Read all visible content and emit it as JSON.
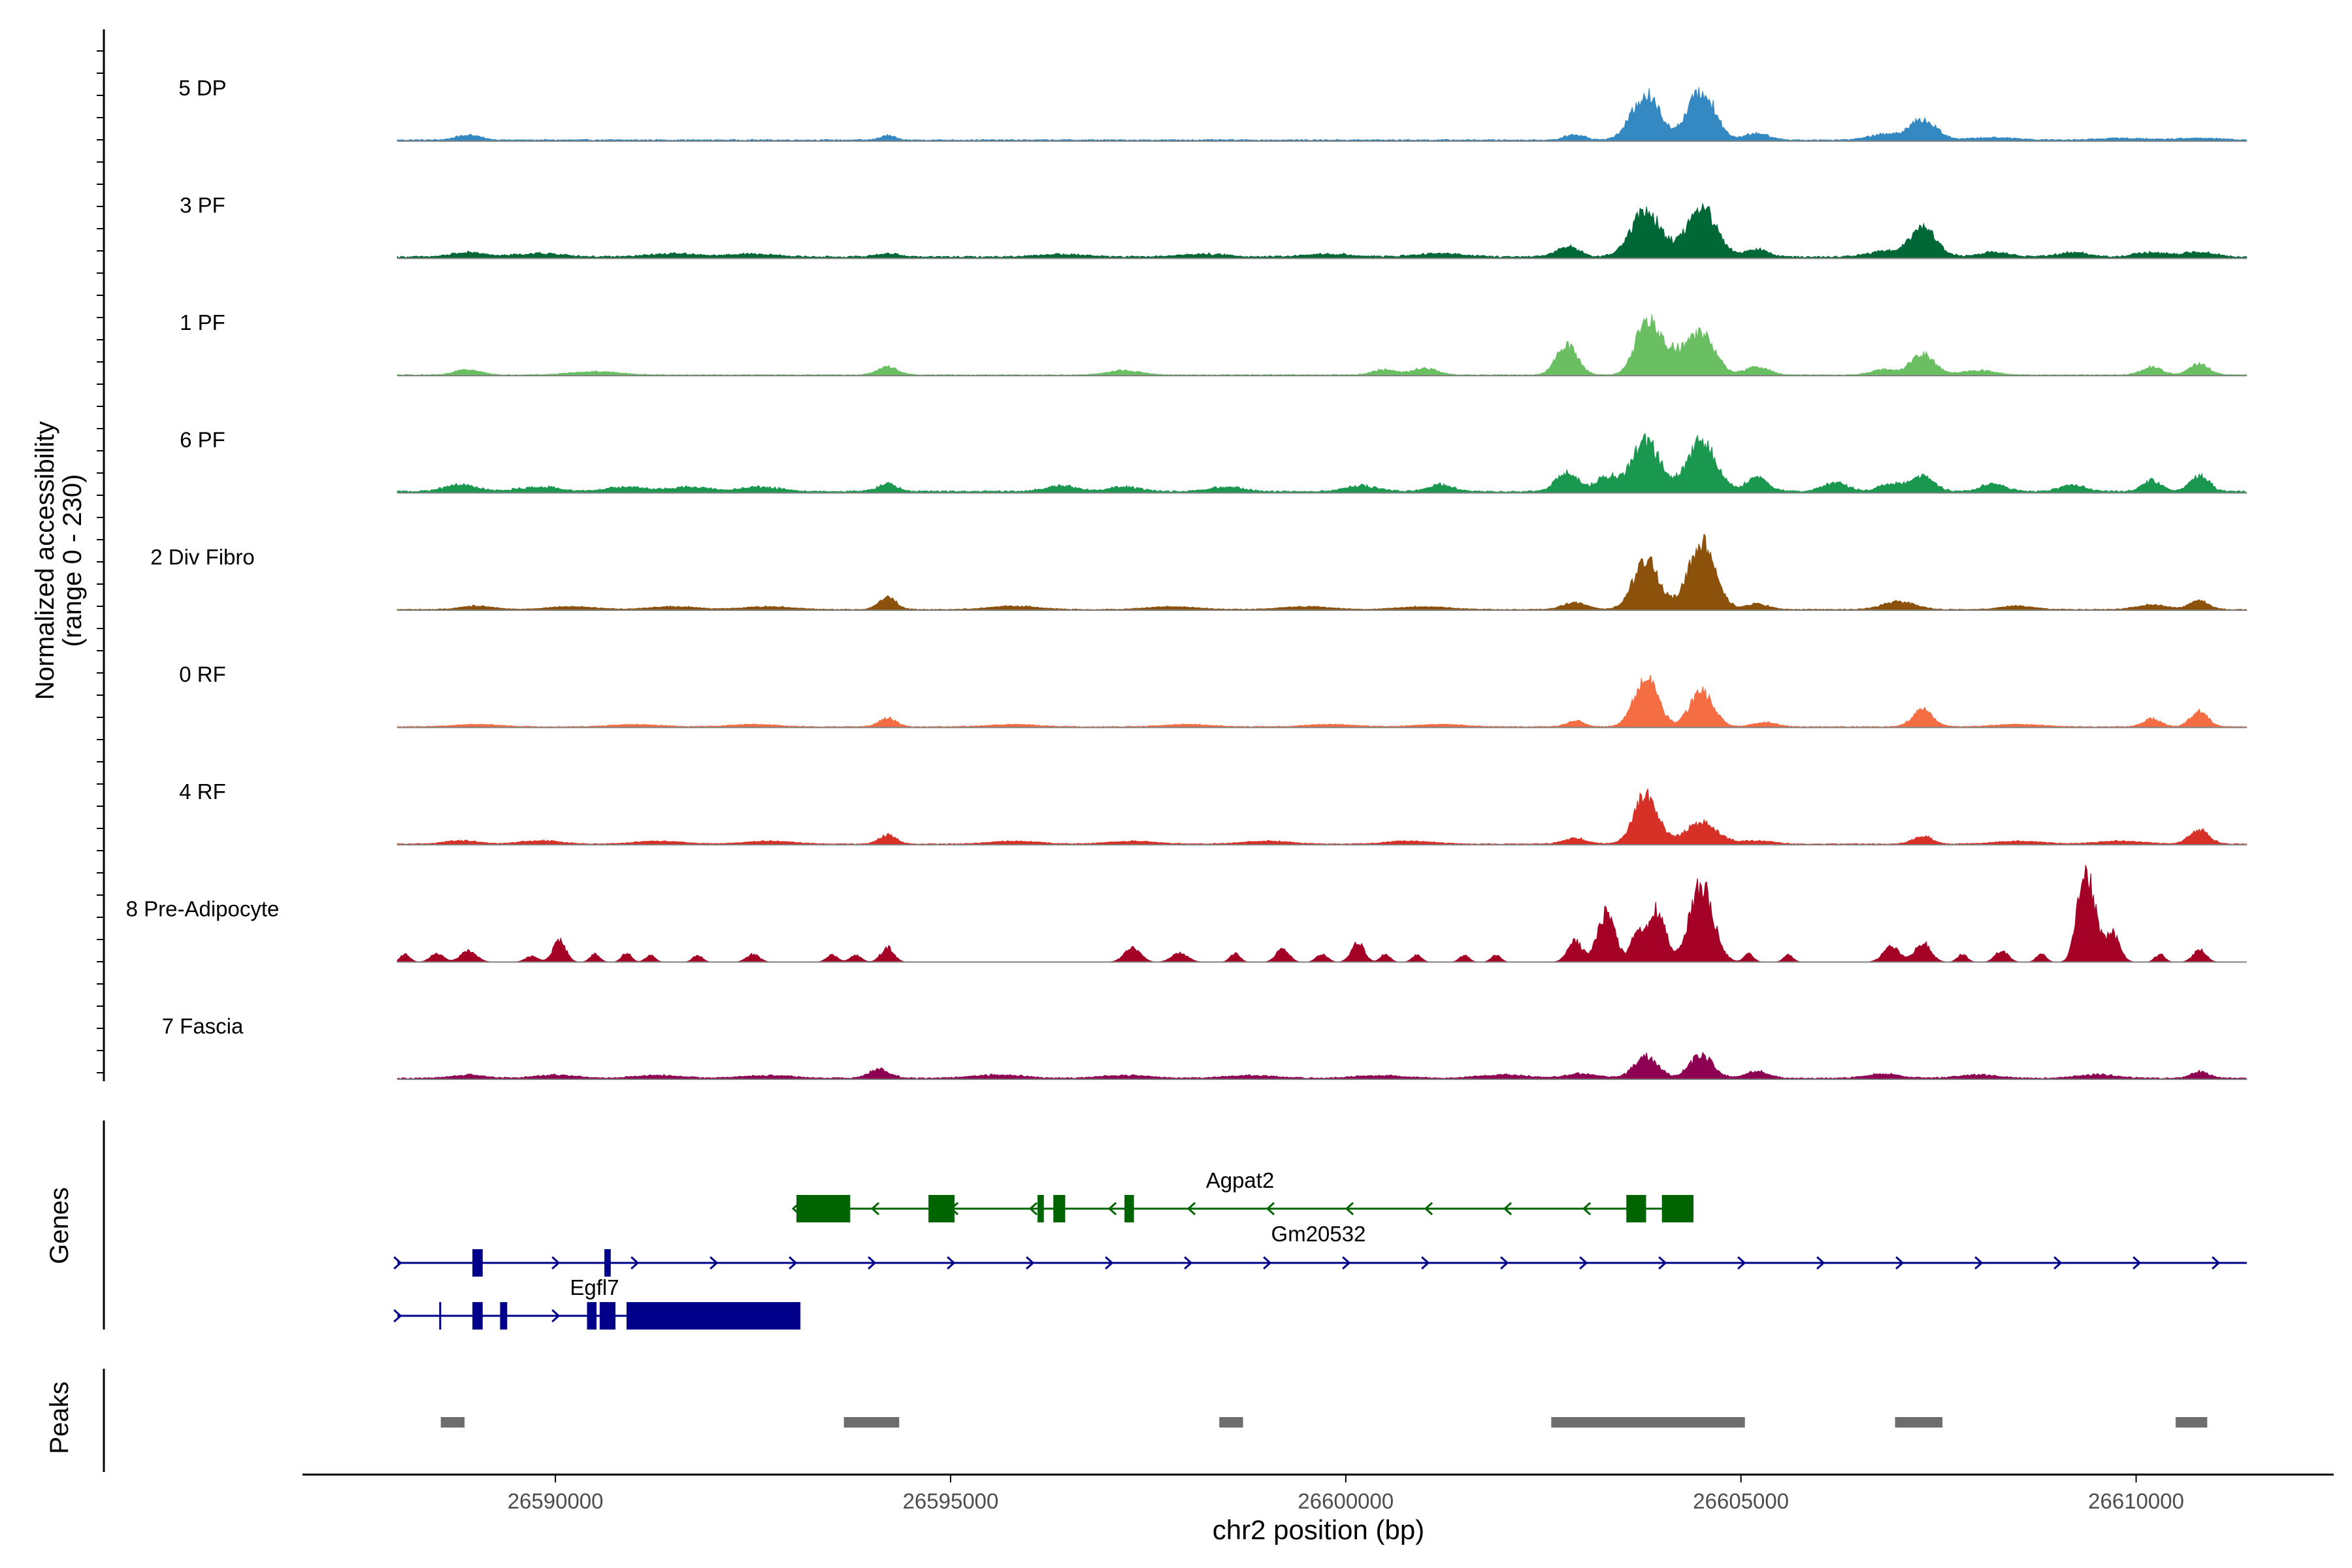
{
  "chart_data": {
    "type": "area",
    "y_axis": {
      "label": "Normalized accessibility",
      "range_label": "(range 0 - 230)",
      "ylim": [
        0,
        230
      ]
    },
    "x_axis": {
      "label": "chr2 position (bp)",
      "xlim": [
        26586800,
        26612500
      ],
      "ticks": [
        26590000,
        26595000,
        26600000,
        26605000,
        26610000
      ],
      "tick_labels": [
        "26590000",
        "26595000",
        "26600000",
        "26605000",
        "26610000"
      ]
    },
    "track_start": 26588000,
    "track_end": 26611400,
    "tracks": [
      {
        "label": "5 DP",
        "color": "#3589C2",
        "baseline": 3,
        "peaks": [
          [
            26588900,
            9,
            150
          ],
          [
            26594200,
            8,
            90
          ],
          [
            26602900,
            10,
            120
          ],
          [
            26603800,
            80,
            180
          ],
          [
            26604500,
            88,
            170
          ],
          [
            26605200,
            12,
            150
          ],
          [
            26606800,
            10,
            200
          ],
          [
            26607300,
            36,
            170
          ],
          [
            26608200,
            4,
            300
          ],
          [
            26609800,
            3,
            300
          ],
          [
            26610800,
            3,
            300
          ]
        ]
      },
      {
        "label": "3 PF",
        "color": "#006837",
        "baseline": 4,
        "peaks": [
          [
            26588900,
            8,
            200
          ],
          [
            26589800,
            6,
            300
          ],
          [
            26591500,
            6,
            300
          ],
          [
            26592500,
            5,
            300
          ],
          [
            26594200,
            6,
            150
          ],
          [
            26596400,
            5,
            300
          ],
          [
            26598200,
            5,
            300
          ],
          [
            26599800,
            5,
            300
          ],
          [
            26601200,
            6,
            300
          ],
          [
            26602800,
            20,
            140
          ],
          [
            26603800,
            80,
            190
          ],
          [
            26604500,
            88,
            190
          ],
          [
            26605200,
            14,
            140
          ],
          [
            26606800,
            10,
            200
          ],
          [
            26607300,
            52,
            170
          ],
          [
            26608200,
            8,
            200
          ],
          [
            26609200,
            8,
            200
          ],
          [
            26610200,
            8,
            200
          ],
          [
            26610800,
            8,
            200
          ]
        ]
      },
      {
        "label": "1 PF",
        "color": "#6ABF63",
        "baseline": 2,
        "peaks": [
          [
            26588900,
            10,
            150
          ],
          [
            26590500,
            6,
            300
          ],
          [
            26594200,
            14,
            130
          ],
          [
            26597200,
            8,
            200
          ],
          [
            26600500,
            10,
            150
          ],
          [
            26601000,
            12,
            150
          ],
          [
            26602800,
            55,
            130
          ],
          [
            26603800,
            90,
            140
          ],
          [
            26604100,
            40,
            150
          ],
          [
            26604500,
            72,
            170
          ],
          [
            26605200,
            14,
            150
          ],
          [
            26606800,
            10,
            150
          ],
          [
            26607300,
            38,
            150
          ],
          [
            26608000,
            8,
            200
          ],
          [
            26610200,
            14,
            130
          ],
          [
            26610800,
            20,
            120
          ]
        ]
      },
      {
        "label": "6 PF",
        "color": "#1A9850",
        "baseline": 4,
        "peaks": [
          [
            26588800,
            12,
            200
          ],
          [
            26589800,
            8,
            250
          ],
          [
            26590900,
            8,
            250
          ],
          [
            26591700,
            8,
            250
          ],
          [
            26592600,
            8,
            250
          ],
          [
            26594200,
            14,
            120
          ],
          [
            26596400,
            10,
            200
          ],
          [
            26597200,
            8,
            200
          ],
          [
            26598500,
            8,
            200
          ],
          [
            26600200,
            10,
            200
          ],
          [
            26601200,
            12,
            150
          ],
          [
            26602800,
            34,
            140
          ],
          [
            26603300,
            26,
            130
          ],
          [
            26603800,
            88,
            180
          ],
          [
            26604500,
            90,
            180
          ],
          [
            26605200,
            24,
            140
          ],
          [
            26606200,
            16,
            150
          ],
          [
            26606900,
            14,
            150
          ],
          [
            26607300,
            26,
            150
          ],
          [
            26608200,
            14,
            150
          ],
          [
            26609200,
            12,
            150
          ],
          [
            26610200,
            20,
            120
          ],
          [
            26610800,
            28,
            120
          ]
        ]
      },
      {
        "label": "2 Div Fibro",
        "color": "#8C510A",
        "baseline": 2,
        "peaks": [
          [
            26589000,
            6,
            200
          ],
          [
            26590200,
            5,
            300
          ],
          [
            26591500,
            5,
            300
          ],
          [
            26592700,
            5,
            300
          ],
          [
            26594200,
            22,
            110
          ],
          [
            26595800,
            6,
            300
          ],
          [
            26597800,
            5,
            300
          ],
          [
            26599500,
            5,
            300
          ],
          [
            26601000,
            5,
            300
          ],
          [
            26602900,
            12,
            150
          ],
          [
            26603800,
            88,
            160
          ],
          [
            26604500,
            120,
            170
          ],
          [
            26605200,
            10,
            150
          ],
          [
            26607000,
            14,
            200
          ],
          [
            26608500,
            6,
            200
          ],
          [
            26610200,
            8,
            200
          ],
          [
            26610800,
            16,
            120
          ]
        ]
      },
      {
        "label": "0 RF",
        "color": "#F46D43",
        "baseline": 2,
        "peaks": [
          [
            26589000,
            4,
            300
          ],
          [
            26591000,
            4,
            300
          ],
          [
            26592500,
            4,
            300
          ],
          [
            26594200,
            16,
            110
          ],
          [
            26595800,
            4,
            300
          ],
          [
            26598000,
            4,
            300
          ],
          [
            26599800,
            4,
            300
          ],
          [
            26601200,
            4,
            300
          ],
          [
            26602900,
            10,
            110
          ],
          [
            26603800,
            85,
            150
          ],
          [
            26604500,
            62,
            150
          ],
          [
            26605300,
            8,
            150
          ],
          [
            26607300,
            30,
            130
          ],
          [
            26608500,
            4,
            300
          ],
          [
            26610200,
            14,
            110
          ],
          [
            26610800,
            28,
            110
          ]
        ]
      },
      {
        "label": "4 RF",
        "color": "#D73027",
        "baseline": 2,
        "peaks": [
          [
            26588800,
            6,
            200
          ],
          [
            26589800,
            6,
            250
          ],
          [
            26591300,
            5,
            300
          ],
          [
            26592700,
            5,
            300
          ],
          [
            26594200,
            16,
            110
          ],
          [
            26595800,
            5,
            300
          ],
          [
            26597300,
            5,
            300
          ],
          [
            26599000,
            5,
            300
          ],
          [
            26600800,
            5,
            300
          ],
          [
            26602900,
            10,
            150
          ],
          [
            26603800,
            88,
            150
          ],
          [
            26604500,
            38,
            200
          ],
          [
            26605200,
            6,
            200
          ],
          [
            26607300,
            14,
            120
          ],
          [
            26608500,
            5,
            300
          ],
          [
            26609800,
            5,
            300
          ],
          [
            26610800,
            26,
            120
          ]
        ]
      },
      {
        "label": "8 Pre-Adipocyte",
        "color": "#A50026",
        "baseline": 0,
        "peaks": [
          [
            26588100,
            14,
            60
          ],
          [
            26588500,
            16,
            80
          ],
          [
            26588900,
            20,
            100
          ],
          [
            26589700,
            10,
            80
          ],
          [
            26590050,
            38,
            80
          ],
          [
            26590500,
            14,
            60
          ],
          [
            26590900,
            16,
            60
          ],
          [
            26591200,
            12,
            60
          ],
          [
            26591800,
            12,
            60
          ],
          [
            26592500,
            14,
            80
          ],
          [
            26593500,
            12,
            70
          ],
          [
            26593800,
            12,
            70
          ],
          [
            26594200,
            26,
            80
          ],
          [
            26597300,
            26,
            100
          ],
          [
            26597900,
            16,
            100
          ],
          [
            26598600,
            16,
            60
          ],
          [
            26599200,
            24,
            80
          ],
          [
            26599700,
            14,
            70
          ],
          [
            26600150,
            36,
            80
          ],
          [
            26600500,
            14,
            60
          ],
          [
            26600900,
            12,
            60
          ],
          [
            26601500,
            12,
            60
          ],
          [
            26601900,
            12,
            60
          ],
          [
            26602900,
            38,
            90
          ],
          [
            26603300,
            88,
            110
          ],
          [
            26603700,
            60,
            80
          ],
          [
            26603950,
            95,
            100
          ],
          [
            26604500,
            135,
            150
          ],
          [
            26605100,
            14,
            60
          ],
          [
            26605600,
            12,
            60
          ],
          [
            26606900,
            28,
            100
          ],
          [
            26607300,
            34,
            100
          ],
          [
            26607800,
            14,
            60
          ],
          [
            26608300,
            20,
            80
          ],
          [
            26608800,
            14,
            60
          ],
          [
            26609300,
            62,
            80
          ],
          [
            26609400,
            125,
            100
          ],
          [
            26609700,
            50,
            90
          ],
          [
            26610300,
            14,
            60
          ],
          [
            26610800,
            22,
            80
          ]
        ]
      },
      {
        "label": "7 Fascia",
        "color": "#8E0152",
        "baseline": 3,
        "peaks": [
          [
            26588900,
            6,
            200
          ],
          [
            26590000,
            6,
            250
          ],
          [
            26591300,
            5,
            300
          ],
          [
            26592700,
            5,
            300
          ],
          [
            26594100,
            16,
            130
          ],
          [
            26595600,
            6,
            300
          ],
          [
            26597200,
            5,
            300
          ],
          [
            26598800,
            5,
            300
          ],
          [
            26600400,
            5,
            300
          ],
          [
            26602000,
            6,
            300
          ],
          [
            26603000,
            8,
            200
          ],
          [
            26603800,
            38,
            150
          ],
          [
            26604500,
            40,
            150
          ],
          [
            26605200,
            12,
            150
          ],
          [
            26606800,
            8,
            200
          ],
          [
            26608000,
            6,
            250
          ],
          [
            26609500,
            6,
            250
          ],
          [
            26610800,
            12,
            110
          ]
        ]
      }
    ],
    "genes_label": "Genes",
    "peaks_label": "Peaks",
    "genes": [
      {
        "name": "Agpat2",
        "color": "#006400",
        "strand": "-",
        "start": 26593050,
        "end": 26604400,
        "row": 0,
        "exons": [
          [
            26593050,
            26593730
          ],
          [
            26594720,
            26595050
          ],
          [
            26596100,
            26596180
          ],
          [
            26596300,
            26596450
          ],
          [
            26597200,
            26597320
          ],
          [
            26603550,
            26603800
          ],
          [
            26604000,
            26604400
          ]
        ]
      },
      {
        "name": "Gm20532",
        "color": "#00008B",
        "strand": "+",
        "start": 26588000,
        "end": 26611400,
        "row": 1,
        "exons": [
          [
            26588950,
            26589080
          ],
          [
            26590620,
            26590700
          ]
        ]
      },
      {
        "name": "Egfl7",
        "color": "#00008B",
        "strand": "+",
        "start": 26588000,
        "end": 26593100,
        "row": 2,
        "exons": [
          [
            26588530,
            26588550
          ],
          [
            26588950,
            26589080
          ],
          [
            26589300,
            26589390
          ],
          [
            26590400,
            26590520
          ],
          [
            26590560,
            26590760
          ],
          [
            26590900,
            26593100
          ]
        ]
      }
    ],
    "peak_regions": [
      [
        26588550,
        26588850
      ],
      [
        26593650,
        26594350
      ],
      [
        26598400,
        26598700
      ],
      [
        26602600,
        26605050
      ],
      [
        26606950,
        26607550
      ],
      [
        26610500,
        26610900
      ]
    ]
  }
}
